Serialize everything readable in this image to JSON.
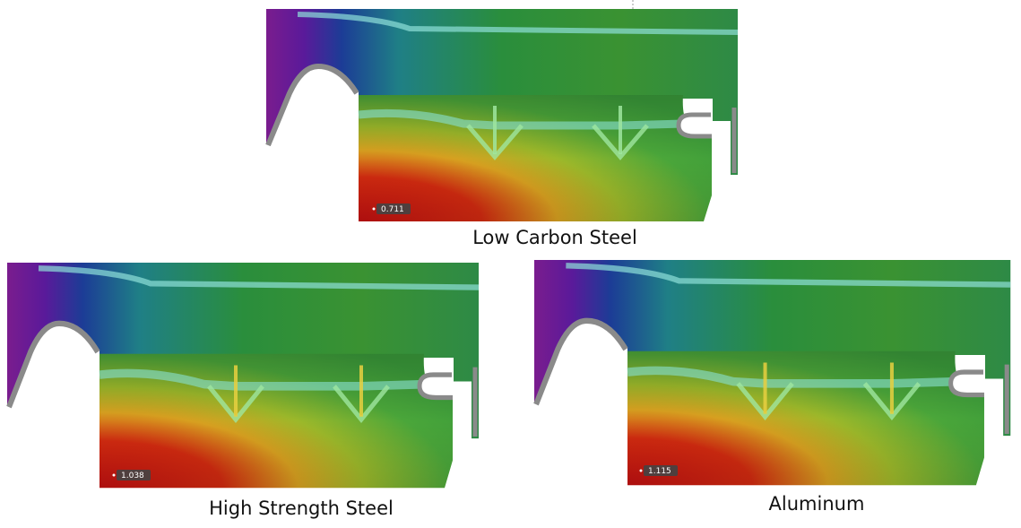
{
  "panels": [
    {
      "label": "Low Carbon Steel",
      "value_label": "0.711"
    },
    {
      "label": "High Strength Steel",
      "value_label": "1.038"
    },
    {
      "label": "Aluminum",
      "value_label": "1.115"
    }
  ]
}
